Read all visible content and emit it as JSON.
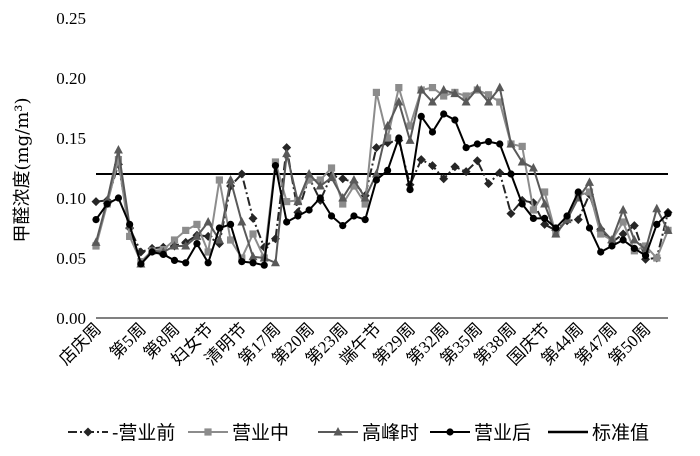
{
  "chart_data": {
    "type": "line",
    "ylabel": "甲醛浓度(mg/m³)",
    "ylim": [
      0,
      0.25
    ],
    "yticks": [
      "0.00",
      "0.05",
      "0.10",
      "0.15",
      "0.20",
      "0.25"
    ],
    "x": [
      "店庆周",
      "第2周",
      "第3周",
      "第4周",
      "第5周",
      "第6周",
      "第7周",
      "第8周",
      "第9周",
      "第10周",
      "妇女节",
      "第12周",
      "第13周",
      "清明节",
      "第15周",
      "第16周",
      "第17周",
      "第18周",
      "第19周",
      "第20周",
      "第21周",
      "第22周",
      "第23周",
      "第24周",
      "第25周",
      "端午节",
      "第27周",
      "第28周",
      "第29周",
      "第30周",
      "第31周",
      "第32周",
      "第33周",
      "第34周",
      "第35周",
      "第36周",
      "第37周",
      "第38周",
      "第39周",
      "第40周",
      "国庆节",
      "第42周",
      "第43周",
      "第44周",
      "第45周",
      "第46周",
      "第47周",
      "第48周",
      "第49周",
      "第50周",
      "第51周",
      "第52周"
    ],
    "x_tick_labels": [
      "店庆周",
      "第5周",
      "第8周",
      "妇女节",
      "清明节",
      "第17周",
      "第20周",
      "第23周",
      "端午节",
      "第29周",
      "第32周",
      "第35周",
      "第38周",
      "国庆节",
      "第44周",
      "第47周",
      "第50周"
    ],
    "series": [
      {
        "name": "营业前",
        "legend_label": "-营业前",
        "marker": "diamond",
        "dash": "dashdot",
        "values": [
          0.097,
          0.098,
          0.128,
          0.075,
          0.055,
          0.058,
          0.059,
          0.06,
          0.063,
          0.069,
          0.068,
          0.062,
          0.11,
          0.12,
          0.083,
          0.059,
          0.066,
          0.142,
          0.088,
          0.117,
          0.098,
          0.119,
          0.116,
          0.113,
          0.102,
          0.142,
          0.146,
          0.148,
          0.111,
          0.132,
          0.127,
          0.116,
          0.126,
          0.122,
          0.131,
          0.112,
          0.121,
          0.087,
          0.098,
          0.096,
          0.078,
          0.073,
          0.081,
          0.082,
          0.103,
          0.074,
          0.063,
          0.07,
          0.077,
          0.049,
          0.05,
          0.088
        ]
      },
      {
        "name": "营业中",
        "legend_label": "营业中",
        "marker": "square",
        "dash": "solid",
        "values": [
          0.06,
          0.095,
          0.132,
          0.068,
          0.047,
          0.056,
          0.057,
          0.065,
          0.073,
          0.078,
          0.055,
          0.115,
          0.065,
          0.05,
          0.07,
          0.05,
          0.13,
          0.097,
          0.098,
          0.115,
          0.115,
          0.125,
          0.095,
          0.11,
          0.095,
          0.188,
          0.15,
          0.192,
          0.16,
          0.19,
          0.192,
          0.185,
          0.188,
          0.185,
          0.19,
          0.186,
          0.18,
          0.145,
          0.143,
          0.09,
          0.105,
          0.07,
          0.083,
          0.102,
          0.105,
          0.07,
          0.065,
          0.08,
          0.056,
          0.06,
          0.05,
          0.073
        ]
      },
      {
        "name": "高峰时",
        "legend_label": "高峰时",
        "marker": "triangle",
        "dash": "solid",
        "values": [
          0.063,
          0.098,
          0.14,
          0.077,
          0.045,
          0.056,
          0.055,
          0.06,
          0.06,
          0.068,
          0.08,
          0.065,
          0.115,
          0.08,
          0.051,
          0.05,
          0.046,
          0.137,
          0.097,
          0.12,
          0.11,
          0.117,
          0.1,
          0.115,
          0.1,
          0.12,
          0.16,
          0.18,
          0.148,
          0.19,
          0.18,
          0.19,
          0.187,
          0.18,
          0.191,
          0.18,
          0.192,
          0.145,
          0.13,
          0.125,
          0.095,
          0.07,
          0.082,
          0.1,
          0.113,
          0.075,
          0.065,
          0.09,
          0.065,
          0.057,
          0.091,
          0.073
        ]
      },
      {
        "name": "营业后",
        "legend_label": "营业后",
        "marker": "circle",
        "dash": "solid",
        "values": [
          0.082,
          0.095,
          0.1,
          0.078,
          0.045,
          0.055,
          0.053,
          0.048,
          0.046,
          0.062,
          0.046,
          0.075,
          0.078,
          0.047,
          0.046,
          0.044,
          0.127,
          0.08,
          0.085,
          0.09,
          0.1,
          0.085,
          0.077,
          0.085,
          0.082,
          0.115,
          0.123,
          0.15,
          0.107,
          0.168,
          0.155,
          0.17,
          0.165,
          0.142,
          0.145,
          0.147,
          0.145,
          0.12,
          0.095,
          0.083,
          0.083,
          0.075,
          0.085,
          0.105,
          0.075,
          0.055,
          0.06,
          0.065,
          0.058,
          0.052,
          0.078,
          0.087
        ]
      }
    ],
    "reference_lines": [
      {
        "name": "标准值",
        "legend_label": "标准值",
        "value": 0.12
      }
    ],
    "legend_position": "bottom",
    "grid": false
  },
  "colors": {
    "营业前": "#262626",
    "营业中": "#8c8c8c",
    "高峰时": "#595959",
    "营业后": "#000000",
    "标准值": "#000000",
    "axis": "#000000"
  }
}
